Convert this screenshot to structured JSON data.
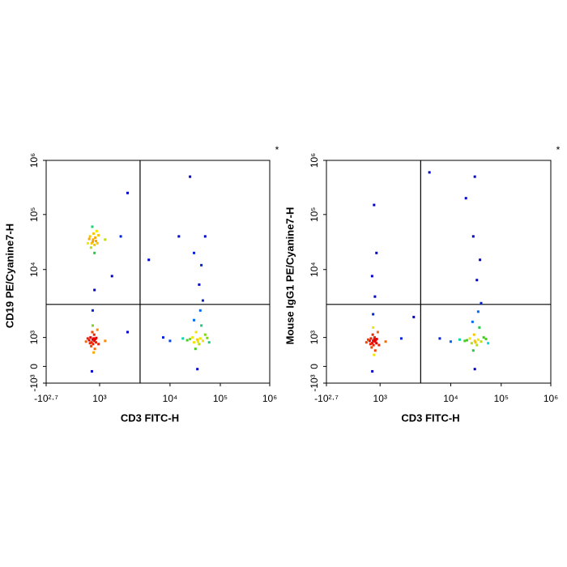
{
  "chart_data": [
    {
      "type": "scatter",
      "x_label": "CD3 FITC-H",
      "y_label": "CD19 PE/Cyanine7-H",
      "corner_mark": "*",
      "xlim": [
        -501,
        1000000
      ],
      "ylim": [
        -1000,
        1000000
      ],
      "xticks": [
        {
          "value": -501,
          "label": "-10²·⁷"
        },
        {
          "value": 1000,
          "label": "10³"
        },
        {
          "value": 10000,
          "label": "10⁴"
        },
        {
          "value": 100000,
          "label": "10⁵"
        },
        {
          "value": 1000000,
          "label": "10⁶"
        }
      ],
      "yticks": [
        {
          "value": -1000,
          "label": "-10³"
        },
        0,
        {
          "value": 1000,
          "label": "10³"
        },
        {
          "value": 10000,
          "label": "10⁴"
        },
        {
          "value": 100000,
          "label": "10⁵"
        },
        {
          "value": 1000000,
          "label": "10⁶"
        }
      ],
      "gate_x": 3760,
      "gate_y": 3070,
      "x": [
        450,
        520,
        600,
        380,
        700,
        550,
        420,
        650,
        500,
        800,
        350,
        900,
        1200,
        2000,
        480,
        600,
        300,
        750,
        500,
        450,
        550,
        600,
        400,
        520,
        480,
        650,
        350,
        700,
        580,
        430,
        500,
        620,
        380,
        720,
        300,
        800,
        550,
        460,
        1200,
        250,
        900,
        500,
        600,
        35000,
        30000,
        40000,
        28000,
        45000,
        33000,
        38000,
        25000,
        50000,
        32000,
        42000,
        36000,
        22000,
        55000,
        30000,
        40000,
        35000,
        18000,
        60000,
        45000,
        38000,
        42000,
        30000,
        50000,
        10000,
        8000,
        2500,
        25000,
        15000,
        5000,
        1500,
        2500
      ],
      "y": [
        30000,
        35000,
        28000,
        40000,
        33000,
        45000,
        25000,
        38000,
        32000,
        30000,
        36000,
        42000,
        35000,
        40000,
        60000,
        20000,
        30000,
        50000,
        800,
        600,
        900,
        700,
        1000,
        500,
        1200,
        850,
        750,
        600,
        1100,
        400,
        1500,
        300,
        550,
        950,
        900,
        1300,
        200,
        -100,
        700,
        650,
        500,
        2500,
        5000,
        800,
        600,
        900,
        1000,
        700,
        1200,
        500,
        850,
        1100,
        300,
        1500,
        650,
        750,
        950,
        1800,
        2500,
        -50,
        900,
        600,
        3500,
        6000,
        12000,
        20000,
        40000,
        700,
        1000,
        250000,
        500000,
        40000,
        15000,
        8000,
        1200
      ]
    },
    {
      "type": "scatter",
      "x_label": "CD3 FITC-H",
      "y_label": "Mouse IgG1 PE/Cyanine7-H",
      "corner_mark": "*",
      "xlim": [
        -501,
        1000000
      ],
      "ylim": [
        -1000,
        1000000
      ],
      "xticks": [
        {
          "value": -501,
          "label": "-10²·⁷"
        },
        {
          "value": 1000,
          "label": "10³"
        },
        {
          "value": 10000,
          "label": "10⁴"
        },
        {
          "value": 100000,
          "label": "10⁵"
        },
        {
          "value": 1000000,
          "label": "10⁶"
        }
      ],
      "yticks": [
        {
          "value": -1000,
          "label": "-10³"
        },
        0,
        {
          "value": 1000,
          "label": "10³"
        },
        {
          "value": 10000,
          "label": "10⁴"
        },
        {
          "value": 100000,
          "label": "10⁵"
        },
        {
          "value": 1000000,
          "label": "10⁶"
        }
      ],
      "gate_x": 3760,
      "gate_y": 3070,
      "x": [
        500,
        450,
        560,
        600,
        400,
        520,
        480,
        650,
        350,
        700,
        580,
        430,
        500,
        620,
        380,
        720,
        300,
        800,
        550,
        460,
        1200,
        250,
        900,
        500,
        600,
        450,
        700,
        550,
        30000,
        26000,
        35000,
        24000,
        40000,
        29000,
        33000,
        21000,
        45000,
        28000,
        37000,
        31000,
        19000,
        50000,
        27000,
        35000,
        30000,
        15000,
        55000,
        40000,
        33000,
        38000,
        28000,
        30000,
        10000,
        7000,
        5000,
        20000,
        3000,
        2000
      ],
      "y": [
        700,
        550,
        800,
        650,
        900,
        450,
        1100,
        750,
        700,
        550,
        1000,
        350,
        1400,
        250,
        500,
        850,
        800,
        1200,
        150,
        -100,
        650,
        600,
        450,
        2200,
        4000,
        8000,
        20000,
        150000,
        700,
        550,
        800,
        900,
        650,
        1100,
        450,
        750,
        1000,
        250,
        1400,
        600,
        700,
        850,
        1700,
        2400,
        -50,
        800,
        550,
        3200,
        7000,
        15000,
        40000,
        500000,
        650,
        900,
        600000,
        200000,
        2000,
        900
      ]
    }
  ]
}
